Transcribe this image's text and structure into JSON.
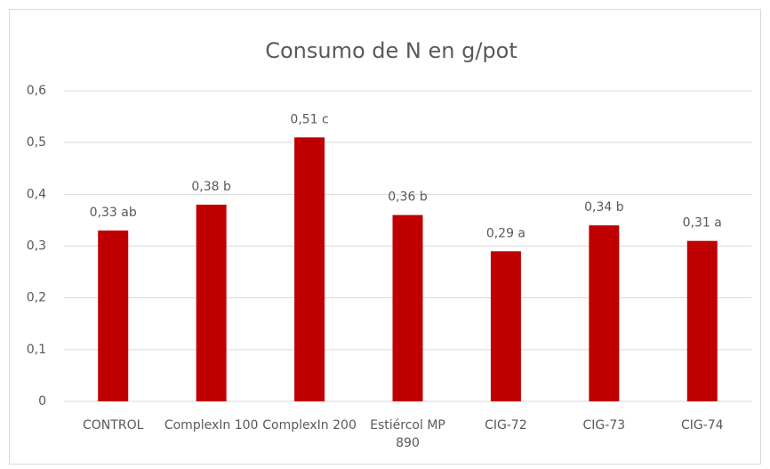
{
  "chart_data": {
    "type": "bar",
    "title": "Consumo de N en g/pot",
    "categories": [
      "CONTROL",
      "ComplexIn 100",
      "ComplexIn 200",
      "Estiércol MP 890",
      "CIG-72",
      "CIG-73",
      "CIG-74"
    ],
    "values": [
      0.33,
      0.38,
      0.51,
      0.36,
      0.29,
      0.34,
      0.31
    ],
    "value_labels": [
      "0,33 ab",
      "0,38 b",
      "0,51 c",
      "0,36 b",
      "0,29 a",
      "0,34 b",
      "0,31 a"
    ],
    "color": "#c00000",
    "ylim": [
      0,
      0.6
    ],
    "yticks": [
      0,
      {
        "value": 0.1,
        "label": "0,1"
      },
      {
        "value": 0.2,
        "label": "0,2"
      },
      {
        "value": 0.3,
        "label": "0,3"
      },
      {
        "value": 0.4,
        "label": "0,4"
      },
      {
        "value": 0.5,
        "label": "0,5"
      },
      {
        "value": 0.6,
        "label": "0,6"
      }
    ],
    "grid": true
  }
}
